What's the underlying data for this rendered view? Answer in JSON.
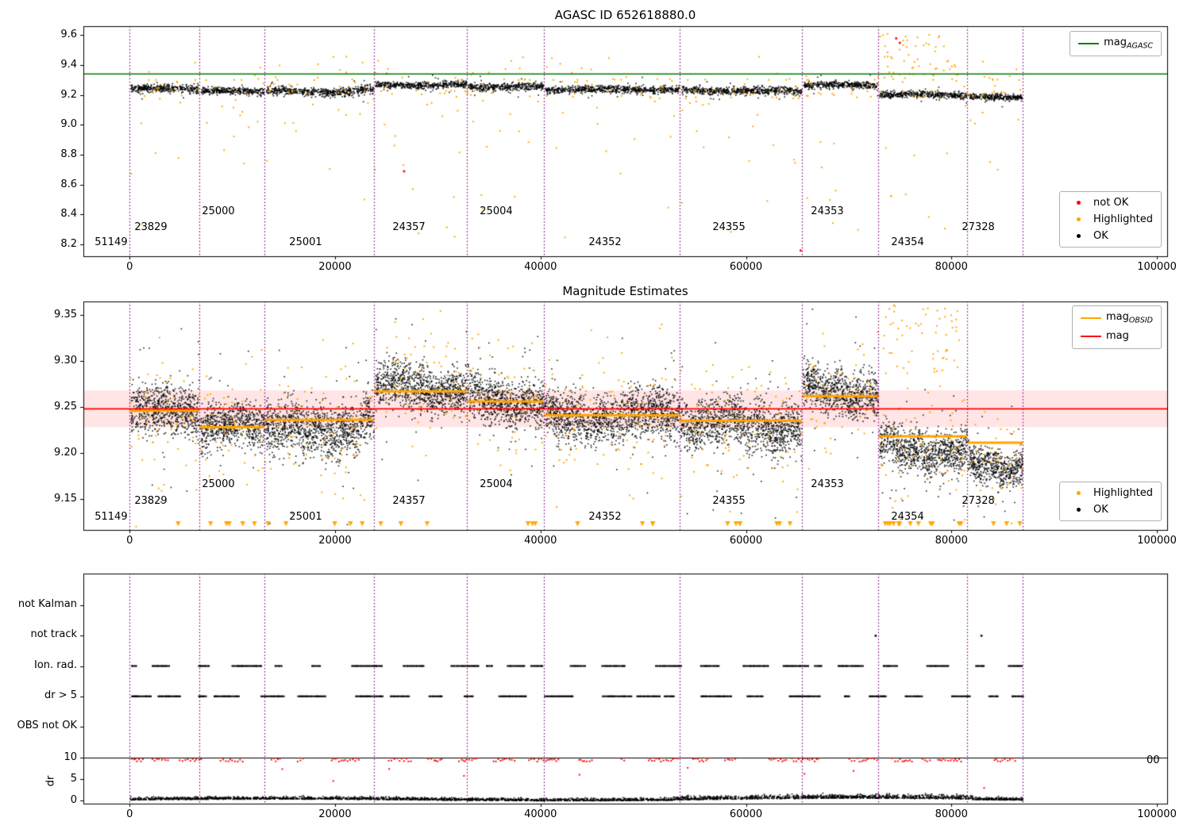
{
  "chart_data": [
    {
      "type": "scatter",
      "title": "AGASC ID 652618880.0",
      "xlim": [
        -4500,
        101000
      ],
      "ylim": [
        8.12,
        9.66
      ],
      "xticks": [
        0,
        20000,
        40000,
        60000,
        80000,
        100000
      ],
      "xtick_labels": [
        "0",
        "20000",
        "40000",
        "60000",
        "80000",
        "100000"
      ],
      "yticks": [
        9.6,
        9.4,
        9.2,
        9.0,
        8.8,
        8.6,
        8.4,
        8.2
      ],
      "ytick_labels": [
        "9.6",
        "9.4",
        "9.2",
        "9.0",
        "8.8",
        "8.6",
        "8.4",
        "8.2"
      ],
      "mag_agasc_line": {
        "value": 9.34,
        "color": "#008000",
        "label_pre": "mag",
        "label_sub": "AGASC"
      },
      "legend_markers": [
        {
          "label": "not OK",
          "color": "#ff0000"
        },
        {
          "label": "Highlighted",
          "color": "#ffa500"
        },
        {
          "label": "OK",
          "color": "#000000"
        }
      ],
      "obsid_boundaries": [
        0,
        6785,
        13123,
        23789,
        32831,
        40329,
        53546,
        65449,
        72869,
        81526,
        86937
      ],
      "obsid_labels": [
        {
          "id": "51149",
          "x": -1800,
          "level": 0
        },
        {
          "id": "23829",
          "x": 2070,
          "level": 1
        },
        {
          "id": "25000",
          "x": 8640,
          "level": 2
        },
        {
          "id": "25001",
          "x": 17140,
          "level": 0
        },
        {
          "id": "24357",
          "x": 27190,
          "level": 1
        },
        {
          "id": "25004",
          "x": 35690,
          "level": 2
        },
        {
          "id": "24352",
          "x": 46280,
          "level": 0
        },
        {
          "id": "24355",
          "x": 58340,
          "level": 1
        },
        {
          "id": "24353",
          "x": 67920,
          "level": 2
        },
        {
          "id": "24354",
          "x": 75730,
          "level": 0
        },
        {
          "id": "27328",
          "x": 82610,
          "level": 1
        }
      ],
      "not_ok_points": [
        [
          26700,
          8.69
        ],
        [
          74600,
          9.58
        ],
        [
          74950,
          9.55
        ],
        [
          65300,
          8.16
        ]
      ]
    },
    {
      "type": "scatter",
      "title": "Magnitude Estimates",
      "ylim": [
        9.116,
        9.365
      ],
      "yticks": [
        9.35,
        9.3,
        9.25,
        9.2,
        9.15
      ],
      "ytick_labels": [
        "9.35",
        "9.30",
        "9.25",
        "9.20",
        "9.15"
      ],
      "mag_line": {
        "value": 9.248,
        "color": "#ff0000",
        "band_halfwidth": 0.02,
        "label_pre": "mag",
        "label_sub": ""
      },
      "mag_obsid_legend": {
        "label_pre": "mag",
        "label_sub": "OBSID",
        "color": "#ffa500"
      },
      "legend_markers": [
        {
          "label": "Highlighted",
          "color": "#ffa500"
        },
        {
          "label": "OK",
          "color": "#000000"
        }
      ],
      "segments": [
        {
          "x0": 0,
          "x1": 6785,
          "mean": 9.245,
          "spread": 0.028,
          "mag_obsid": 9.246
        },
        {
          "x0": 6785,
          "x1": 13123,
          "mean": 9.228,
          "spread": 0.026,
          "mag_obsid": 9.228
        },
        {
          "x0": 13123,
          "x1": 23789,
          "mean": 9.232,
          "spread": 0.03,
          "mag_obsid": 9.236
        },
        {
          "x0": 23789,
          "x1": 32831,
          "mean": 9.272,
          "spread": 0.026,
          "mag_obsid": 9.267
        },
        {
          "x0": 32831,
          "x1": 40329,
          "mean": 9.258,
          "spread": 0.028,
          "mag_obsid": 9.256
        },
        {
          "x0": 40329,
          "x1": 53546,
          "mean": 9.24,
          "spread": 0.027,
          "mag_obsid": 9.241
        },
        {
          "x0": 53546,
          "x1": 65449,
          "mean": 9.231,
          "spread": 0.028,
          "mag_obsid": 9.235
        },
        {
          "x0": 65449,
          "x1": 72869,
          "mean": 9.268,
          "spread": 0.026,
          "mag_obsid": 9.262
        },
        {
          "x0": 72869,
          "x1": 81526,
          "mean": 9.205,
          "spread": 0.024,
          "mag_obsid": 9.218
        },
        {
          "x0": 81526,
          "x1": 86937,
          "mean": 9.188,
          "spread": 0.022,
          "mag_obsid": 9.211
        }
      ]
    },
    {
      "type": "event-rows",
      "categories": [
        "not Kalman",
        "not track",
        "Ion. rad.",
        "dr > 5",
        "OBS not OK"
      ],
      "active_rows": [
        "Ion. rad.",
        "dr > 5"
      ],
      "not_track_points": [
        72600,
        82900
      ],
      "dr": {
        "label": "dr",
        "ticks": [
          10,
          5,
          0
        ],
        "tick_labels": [
          "10",
          "5",
          "0"
        ],
        "hline": 10,
        "clipped_tick": "00"
      }
    }
  ],
  "colors": {
    "ok": "#000000",
    "highlighted": "#ffa500",
    "not_ok": "#ff0000",
    "mag_agasc": "#008000",
    "mag": "#ff0000",
    "mag_obsid": "#ffa500",
    "obsid_boundary": "#800080",
    "band": "rgba(255,0,0,0.10)",
    "frame": "#000000"
  }
}
